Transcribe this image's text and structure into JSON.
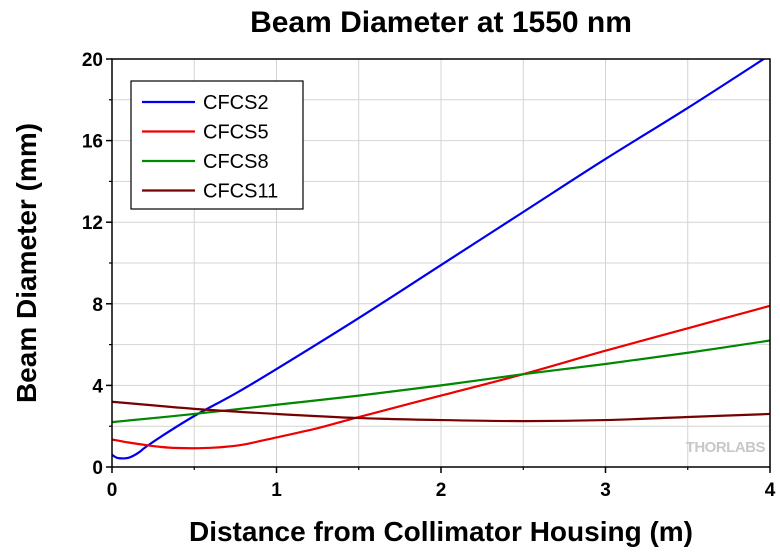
{
  "chart_data": {
    "type": "line",
    "title": "Beam Diameter at 1550 nm",
    "xlabel": "Distance from Collimator Housing (m)",
    "ylabel": "Beam Diameter (mm)",
    "xlim": [
      0,
      4
    ],
    "ylim": [
      0,
      20
    ],
    "xticks": [
      0,
      1,
      2,
      3,
      4
    ],
    "yticks": [
      0,
      4,
      8,
      12,
      16,
      20
    ],
    "grid": true,
    "legend_position": "top-left",
    "watermark": "THORLABS",
    "series": [
      {
        "name": "CFCS2",
        "color": "#0000ee",
        "x": [
          0,
          0.03,
          0.07,
          0.1,
          0.13,
          0.17,
          0.2,
          0.3,
          0.5,
          0.75,
          1,
          1.5,
          2,
          2.5,
          3,
          3.5,
          4
        ],
        "y": [
          0.6,
          0.45,
          0.42,
          0.45,
          0.55,
          0.75,
          0.95,
          1.5,
          2.5,
          3.6,
          4.8,
          7.3,
          9.9,
          12.5,
          15.1,
          17.6,
          20.2
        ]
      },
      {
        "name": "CFCS5",
        "color": "#ee0000",
        "x": [
          0,
          0.1,
          0.2,
          0.3,
          0.4,
          0.5,
          0.6,
          0.7,
          0.8,
          1,
          1.25,
          1.5,
          2,
          2.5,
          3,
          3.5,
          4
        ],
        "y": [
          1.35,
          1.2,
          1.08,
          0.98,
          0.93,
          0.92,
          0.94,
          1.0,
          1.1,
          1.45,
          1.9,
          2.45,
          3.5,
          4.55,
          5.7,
          6.8,
          7.9
        ]
      },
      {
        "name": "CFCS8",
        "color": "#008800",
        "x": [
          0,
          0.5,
          1,
          1.5,
          2,
          2.5,
          3,
          3.5,
          4
        ],
        "y": [
          2.2,
          2.6,
          3.05,
          3.5,
          4.0,
          4.55,
          5.05,
          5.6,
          6.2
        ]
      },
      {
        "name": "CFCS11",
        "color": "#770000",
        "x": [
          0,
          0.5,
          1,
          1.5,
          2,
          2.5,
          3,
          3.5,
          4
        ],
        "y": [
          3.2,
          2.85,
          2.6,
          2.4,
          2.3,
          2.25,
          2.3,
          2.45,
          2.6
        ]
      }
    ]
  }
}
